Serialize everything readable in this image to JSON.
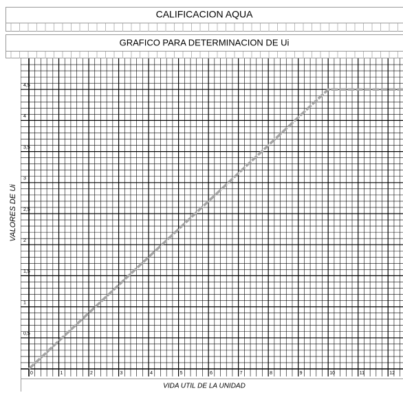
{
  "chart_data": {
    "type": "line",
    "title": "CALIFICACION AQUA",
    "subtitle": "GRAFICO PARA DETERMINACION DE Ui",
    "x_label": "VIDA UTIL DE LA UNIDAD",
    "y_label": "VALORES DE Ui",
    "x": [
      0,
      10,
      12.5
    ],
    "series": [
      {
        "name": "Ui",
        "color": "#a6a6a6",
        "values": [
          0,
          4.5,
          4.5
        ]
      }
    ],
    "xlim": [
      0,
      12.5
    ],
    "xticks": [
      0,
      1,
      2,
      3,
      4,
      5,
      6,
      7,
      8,
      9,
      10,
      11,
      12
    ],
    "ylim": [
      0,
      5
    ],
    "yticks": [
      {
        "value": 0.5,
        "label": "0,5"
      },
      1,
      {
        "value": 1.5,
        "label": "1,5"
      },
      2,
      {
        "value": 2.5,
        "label": "2,5"
      },
      3,
      {
        "value": 3.5,
        "label": "3,5"
      },
      4,
      {
        "value": 4.5,
        "label": "4,5"
      }
    ],
    "grid": true
  }
}
